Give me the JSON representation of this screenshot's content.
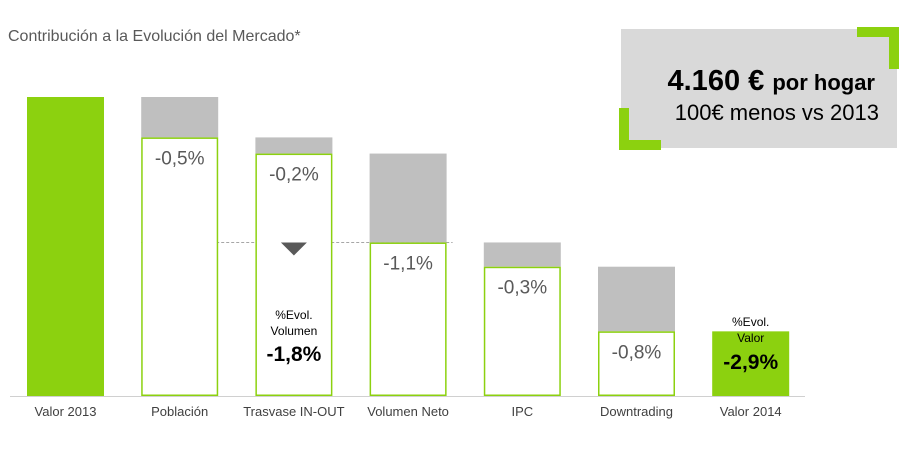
{
  "chart_data": {
    "type": "bar",
    "subtype": "waterfall",
    "title": "Contribución a la Evolución del Mercado*",
    "categories": [
      "Valor 2013",
      "Población",
      "Trasvase IN-OUT",
      "Volumen Neto",
      "IPC",
      "Downtrading",
      "Valor 2014"
    ],
    "changes": [
      "",
      "-0,5%",
      "-0,2%",
      "-1,1%",
      "-0,3%",
      "-0,8%",
      ""
    ],
    "start_index": 100,
    "levels": [
      100,
      99.5,
      99.3,
      98.2,
      97.9,
      97.1,
      97.1
    ],
    "annotations": [
      {
        "category": "Trasvase IN-OUT",
        "label": "%Evol. Volumen",
        "value": "-1,8%"
      },
      {
        "category": "Valor 2014",
        "label": "%Evol. Valor",
        "value": "-2,9%"
      }
    ],
    "reference_line_level": 98.2,
    "ylim": [
      96.3,
      100
    ],
    "grid": false,
    "legend": "none"
  },
  "callout": {
    "main_value": "4.160 €",
    "main_unit": "por hogar",
    "sub": "100€ menos vs 2013"
  },
  "colors": {
    "green": "#8cd10f",
    "gray": "#bfbfbf",
    "text": "#595959",
    "callout_bg": "#d9d9d9",
    "axis": "#d0d0d0"
  }
}
